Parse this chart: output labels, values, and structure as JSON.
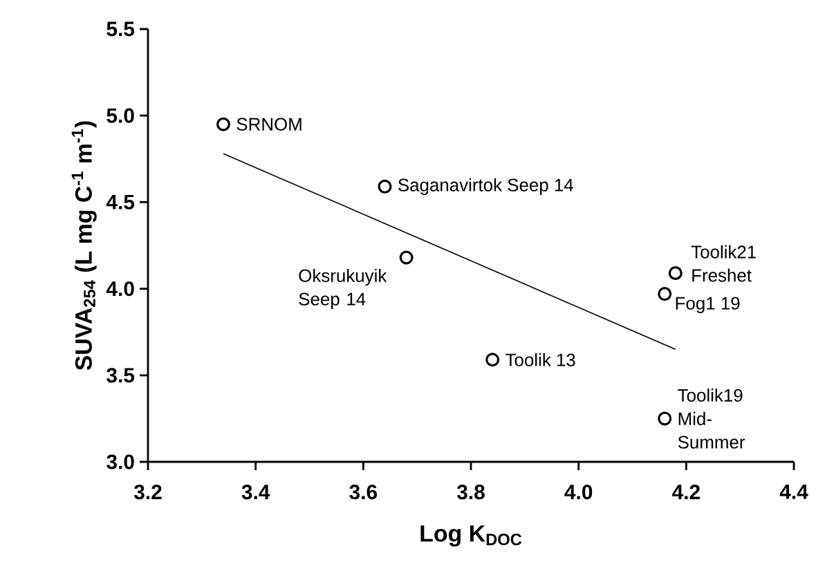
{
  "chart_data": {
    "type": "scatter",
    "xlabel": "Log K$_{DOC}$",
    "ylabel": "SUVA$_{254}$ (L mg C$^{-1}$ m$^{-1}$)",
    "xlim": [
      3.2,
      4.4
    ],
    "xticks": [
      {
        "value": 3.2,
        "label": "3.2"
      },
      {
        "value": 3.4,
        "label": "3.4"
      },
      {
        "value": 3.6,
        "label": "3.6"
      },
      {
        "value": 3.8,
        "label": "3.8"
      },
      {
        "value": 4.0,
        "label": "4.0"
      },
      {
        "value": 4.2,
        "label": "4.2"
      },
      {
        "value": 4.4,
        "label": "4.4"
      }
    ],
    "ylim": [
      3.0,
      5.5
    ],
    "yticks": [
      {
        "value": 3.0,
        "label": "3.0"
      },
      {
        "value": 3.5,
        "label": "3.5"
      },
      {
        "value": 4.0,
        "label": "4.0"
      },
      {
        "value": 4.5,
        "label": "4.5"
      },
      {
        "value": 5.0,
        "label": "5.0"
      },
      {
        "value": 5.5,
        "label": "5.5"
      }
    ],
    "grid": false,
    "series": [
      {
        "marker": "circle",
        "color": "#000000",
        "x": [
          3.34,
          3.64,
          3.68,
          3.84,
          4.18,
          4.16,
          4.16
        ],
        "values": [
          4.95,
          4.59,
          4.18,
          3.59,
          4.09,
          3.97,
          3.25
        ]
      },
      {
        "type": "line",
        "marker": "none",
        "color": "#000000",
        "x": [
          3.34,
          4.18
        ],
        "values": [
          4.78,
          3.65
        ]
      }
    ],
    "annotations": [
      {
        "text": "SRNOM",
        "x": 3.34,
        "y": 4.95
      },
      {
        "text": "Saganavirtok Seep 14",
        "x": 3.64,
        "y": 4.59
      },
      {
        "text": "Oksrukuyik Seep 14",
        "x": 3.68,
        "y": 4.18
      },
      {
        "text": "Toolik 13",
        "x": 3.84,
        "y": 3.59
      },
      {
        "text": "Toolik21 Freshet",
        "x": 4.18,
        "y": 4.09
      },
      {
        "text": "Fog1 19",
        "x": 4.16,
        "y": 3.97
      },
      {
        "text": "Toolik19 Mid-Summer",
        "x": 4.16,
        "y": 3.25
      }
    ]
  }
}
